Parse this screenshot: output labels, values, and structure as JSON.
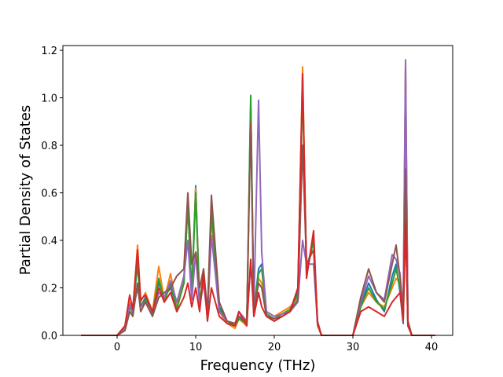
{
  "chart_data": {
    "type": "line",
    "title": "",
    "xlabel": "Frequency (THz)",
    "ylabel": "Partial Density of States",
    "xlim": [
      -6.9,
      42.7
    ],
    "ylim": [
      0,
      1.22
    ],
    "xticks": [
      0,
      10,
      20,
      30,
      40
    ],
    "xtick_labels": [
      "0",
      "10",
      "20",
      "30",
      "40"
    ],
    "yticks": [
      0.0,
      0.2,
      0.4,
      0.6,
      0.8,
      1.0,
      1.2
    ],
    "ytick_labels": [
      "0.0",
      "0.2",
      "0.4",
      "0.6",
      "0.8",
      "1.0",
      "1.2"
    ],
    "grid": false,
    "legend": "none",
    "series": [
      {
        "color": "#1f77b4",
        "x": [
          -4.6,
          0.0,
          1.0,
          1.6,
          2.0,
          2.6,
          3.0,
          3.6,
          4.5,
          5.3,
          6.0,
          6.8,
          7.6,
          8.5,
          9.0,
          9.5,
          10.0,
          10.5,
          11.0,
          11.5,
          12.0,
          13.0,
          14.0,
          15.0,
          15.5,
          16.5,
          17.0,
          17.4,
          18.0,
          18.4,
          19.0,
          20.0,
          21.0,
          22.0,
          23.0,
          23.6,
          24.1,
          25.0,
          25.5,
          26.0,
          27.0,
          30.0,
          31.0,
          32.0,
          33.0,
          34.0,
          35.0,
          35.5,
          36.0,
          36.4,
          36.7,
          37.0,
          37.5,
          40.5
        ],
        "y": [
          0,
          0,
          0.03,
          0.12,
          0.1,
          0.3,
          0.12,
          0.16,
          0.1,
          0.22,
          0.16,
          0.2,
          0.12,
          0.22,
          0.55,
          0.18,
          0.63,
          0.14,
          0.25,
          0.08,
          0.55,
          0.12,
          0.06,
          0.04,
          0.08,
          0.05,
          0.98,
          0.1,
          0.28,
          0.3,
          0.08,
          0.06,
          0.08,
          0.1,
          0.18,
          1.08,
          0.28,
          0.4,
          0.05,
          0,
          0,
          0,
          0.13,
          0.22,
          0.15,
          0.1,
          0.25,
          0.3,
          0.18,
          0.05,
          1.12,
          0.05,
          0,
          0
        ]
      },
      {
        "color": "#ff7f0e",
        "x": [
          -4.6,
          0.0,
          1.0,
          1.6,
          2.0,
          2.6,
          3.0,
          3.6,
          4.5,
          5.3,
          6.0,
          6.8,
          7.6,
          8.5,
          9.0,
          9.5,
          10.0,
          10.5,
          11.0,
          11.5,
          12.0,
          13.0,
          14.0,
          15.0,
          15.5,
          16.5,
          17.0,
          17.4,
          18.0,
          18.4,
          19.0,
          20.0,
          21.0,
          22.0,
          23.0,
          23.6,
          24.1,
          25.0,
          25.5,
          26.0,
          27.0,
          30.0,
          31.0,
          32.0,
          33.0,
          34.0,
          35.0,
          35.5,
          36.0,
          36.4,
          36.7,
          37.0,
          37.5,
          40.5
        ],
        "y": [
          0,
          0,
          0.04,
          0.14,
          0.1,
          0.38,
          0.14,
          0.18,
          0.1,
          0.29,
          0.15,
          0.26,
          0.12,
          0.24,
          0.58,
          0.16,
          0.62,
          0.12,
          0.28,
          0.06,
          0.5,
          0.1,
          0.05,
          0.03,
          0.07,
          0.04,
          0.96,
          0.08,
          0.24,
          0.22,
          0.1,
          0.08,
          0.1,
          0.12,
          0.16,
          1.13,
          0.25,
          0.42,
          0.04,
          0,
          0,
          0,
          0.12,
          0.18,
          0.14,
          0.12,
          0.2,
          0.24,
          0.22,
          0.08,
          1.14,
          0.04,
          0,
          0
        ]
      },
      {
        "color": "#2ca02c",
        "x": [
          -4.6,
          0.0,
          1.0,
          1.6,
          2.0,
          2.6,
          3.0,
          3.6,
          4.5,
          5.3,
          6.0,
          6.8,
          7.6,
          8.5,
          9.0,
          9.5,
          10.0,
          10.5,
          11.0,
          11.5,
          12.0,
          13.0,
          14.0,
          15.0,
          15.5,
          16.5,
          17.0,
          17.4,
          18.0,
          18.4,
          19.0,
          20.0,
          21.0,
          22.0,
          23.0,
          23.6,
          24.1,
          25.0,
          25.5,
          26.0,
          27.0,
          30.0,
          31.0,
          32.0,
          33.0,
          34.0,
          35.0,
          35.5,
          36.0,
          36.4,
          36.7,
          37.0,
          37.5,
          40.5
        ],
        "y": [
          0,
          0,
          0.03,
          0.12,
          0.09,
          0.32,
          0.12,
          0.15,
          0.09,
          0.24,
          0.14,
          0.22,
          0.11,
          0.22,
          0.56,
          0.17,
          0.6,
          0.13,
          0.26,
          0.07,
          0.52,
          0.11,
          0.06,
          0.04,
          0.07,
          0.05,
          1.01,
          0.09,
          0.26,
          0.28,
          0.09,
          0.07,
          0.09,
          0.11,
          0.17,
          1.06,
          0.26,
          0.4,
          0.05,
          0,
          0,
          0,
          0.12,
          0.2,
          0.14,
          0.11,
          0.22,
          0.28,
          0.2,
          0.06,
          0.5,
          0.05,
          0,
          0
        ]
      },
      {
        "color": "#9467bd",
        "x": [
          -4.6,
          0.0,
          1.0,
          1.6,
          2.0,
          2.6,
          3.0,
          3.6,
          4.5,
          5.3,
          6.0,
          6.8,
          7.6,
          8.5,
          9.0,
          9.5,
          10.0,
          10.5,
          11.0,
          11.5,
          12.0,
          13.0,
          14.0,
          15.0,
          15.5,
          16.5,
          17.0,
          17.4,
          18.0,
          18.4,
          19.0,
          20.0,
          21.0,
          22.0,
          23.0,
          23.6,
          24.1,
          25.0,
          25.5,
          26.0,
          27.0,
          30.0,
          31.0,
          32.0,
          33.0,
          34.0,
          35.0,
          35.5,
          36.0,
          36.4,
          36.7,
          37.0,
          37.5,
          40.5
        ],
        "y": [
          0,
          0,
          0.03,
          0.13,
          0.1,
          0.2,
          0.12,
          0.14,
          0.1,
          0.18,
          0.16,
          0.23,
          0.14,
          0.25,
          0.4,
          0.15,
          0.35,
          0.12,
          0.22,
          0.08,
          0.42,
          0.1,
          0.06,
          0.05,
          0.1,
          0.06,
          0.3,
          0.12,
          0.99,
          0.35,
          0.1,
          0.08,
          0.09,
          0.1,
          0.14,
          0.4,
          0.3,
          0.3,
          0.05,
          0,
          0,
          0,
          0.14,
          0.25,
          0.18,
          0.15,
          0.34,
          0.32,
          0.26,
          0.1,
          1.16,
          0.06,
          0,
          0
        ]
      },
      {
        "color": "#8c564b",
        "x": [
          -4.6,
          0.0,
          1.0,
          1.6,
          2.0,
          2.6,
          3.0,
          3.6,
          4.5,
          5.3,
          6.0,
          6.8,
          7.6,
          8.5,
          9.0,
          9.5,
          10.0,
          10.5,
          11.0,
          11.5,
          12.0,
          13.0,
          14.0,
          15.0,
          15.5,
          16.5,
          17.0,
          17.4,
          18.0,
          18.4,
          19.0,
          20.0,
          21.0,
          22.0,
          23.0,
          23.6,
          24.1,
          25.0,
          25.5,
          26.0,
          27.0,
          30.0,
          31.0,
          32.0,
          33.0,
          34.0,
          35.0,
          35.5,
          36.0,
          36.4,
          36.7,
          37.0,
          37.5,
          40.5
        ],
        "y": [
          0,
          0,
          0.02,
          0.1,
          0.08,
          0.22,
          0.1,
          0.14,
          0.08,
          0.16,
          0.18,
          0.2,
          0.25,
          0.28,
          0.6,
          0.3,
          0.35,
          0.2,
          0.28,
          0.1,
          0.59,
          0.14,
          0.06,
          0.05,
          0.08,
          0.06,
          0.9,
          0.1,
          0.22,
          0.2,
          0.08,
          0.07,
          0.08,
          0.1,
          0.15,
          0.8,
          0.3,
          0.36,
          0.06,
          0,
          0,
          0,
          0.16,
          0.28,
          0.18,
          0.14,
          0.3,
          0.38,
          0.24,
          0.08,
          0.7,
          0.06,
          0,
          0
        ]
      },
      {
        "color": "#d62728",
        "x": [
          -4.6,
          0.0,
          1.0,
          1.6,
          2.0,
          2.6,
          3.0,
          3.6,
          4.5,
          5.3,
          6.0,
          6.8,
          7.6,
          8.5,
          9.0,
          9.5,
          10.0,
          10.5,
          11.0,
          11.5,
          12.0,
          13.0,
          14.0,
          15.0,
          15.5,
          16.5,
          17.0,
          17.4,
          18.0,
          18.4,
          19.0,
          20.0,
          21.0,
          22.0,
          23.0,
          23.6,
          24.1,
          25.0,
          25.5,
          26.0,
          27.0,
          30.0,
          31.0,
          32.0,
          33.0,
          34.0,
          35.0,
          35.5,
          36.0,
          36.4,
          36.7,
          37.0,
          37.5,
          40.5
        ],
        "y": [
          0,
          0,
          0.04,
          0.17,
          0.11,
          0.36,
          0.15,
          0.17,
          0.1,
          0.2,
          0.14,
          0.18,
          0.1,
          0.16,
          0.22,
          0.12,
          0.2,
          0.1,
          0.26,
          0.06,
          0.2,
          0.08,
          0.05,
          0.04,
          0.1,
          0.04,
          0.32,
          0.08,
          0.18,
          0.12,
          0.08,
          0.06,
          0.08,
          0.1,
          0.2,
          1.1,
          0.24,
          0.44,
          0.05,
          0,
          0,
          0,
          0.1,
          0.12,
          0.1,
          0.08,
          0.14,
          0.16,
          0.18,
          0.06,
          0.48,
          0.04,
          0,
          0
        ]
      }
    ]
  }
}
